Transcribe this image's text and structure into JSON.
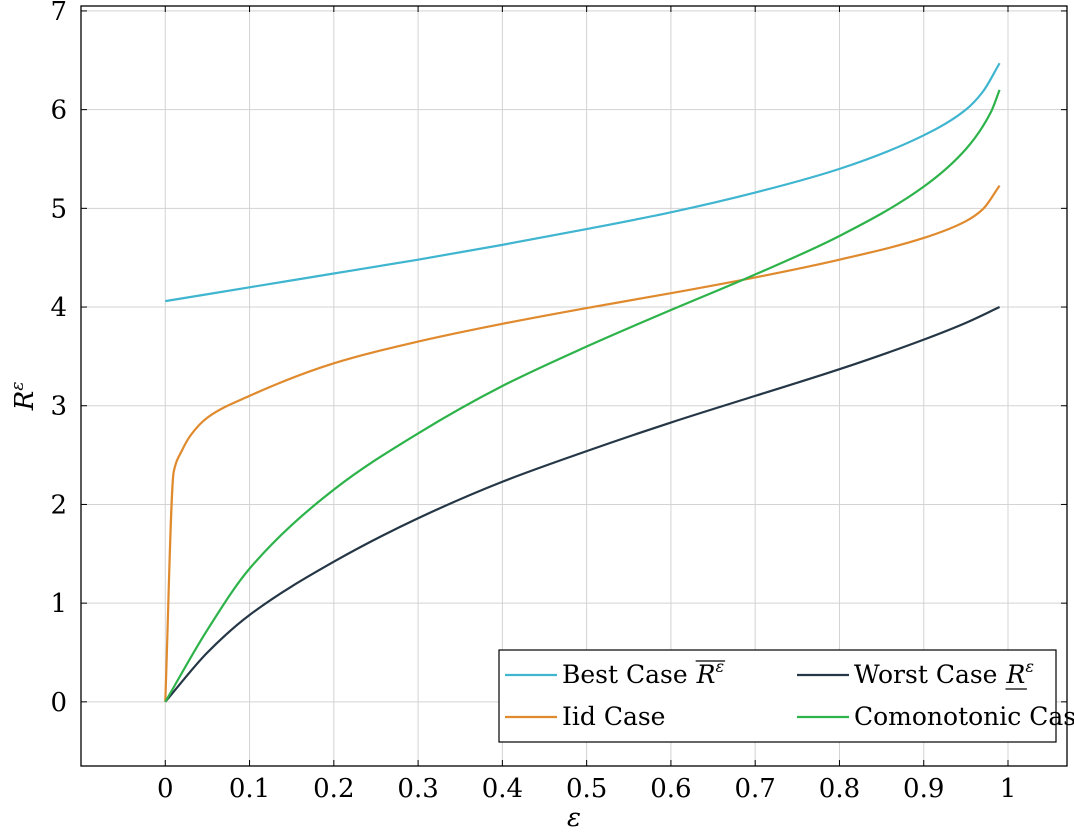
{
  "chart_data": {
    "type": "line",
    "xlabel": "ε",
    "ylabel": "R",
    "ylabel_superscript": "ε",
    "xlim": [
      -0.1,
      1.07
    ],
    "ylim": [
      -0.65,
      7.05
    ],
    "xticks": [
      "0",
      "0.1",
      "0.2",
      "0.3",
      "0.4",
      "0.5",
      "0.6",
      "0.7",
      "0.8",
      "0.9",
      "1"
    ],
    "yticks": [
      "0",
      "1",
      "2",
      "3",
      "4",
      "5",
      "6",
      "7"
    ],
    "grid": true,
    "legend_position": "bottom-right",
    "series": [
      {
        "name": "Best Case",
        "legend_math": "R",
        "legend_math_sup": "ε",
        "legend_math_style": "overline",
        "color": "#3fb5d0",
        "x": [
          0,
          0.1,
          0.2,
          0.3,
          0.4,
          0.5,
          0.6,
          0.7,
          0.8,
          0.9,
          0.95,
          0.97,
          0.99
        ],
        "y": [
          4.06,
          4.2,
          4.34,
          4.48,
          4.63,
          4.79,
          4.96,
          5.16,
          5.4,
          5.74,
          6.0,
          6.18,
          6.47
        ]
      },
      {
        "name": "Worst Case",
        "legend_math": "R",
        "legend_math_sup": "ε",
        "legend_math_style": "underline",
        "color": "#253746",
        "x": [
          0,
          0.05,
          0.1,
          0.2,
          0.3,
          0.4,
          0.5,
          0.6,
          0.7,
          0.8,
          0.9,
          0.95,
          0.99
        ],
        "y": [
          0,
          0.5,
          0.88,
          1.42,
          1.86,
          2.23,
          2.54,
          2.83,
          3.1,
          3.37,
          3.67,
          3.84,
          4.0
        ]
      },
      {
        "name": "Iid Case",
        "color": "#e08a2e",
        "x": [
          0,
          0.01,
          0.02,
          0.03,
          0.05,
          0.1,
          0.2,
          0.3,
          0.4,
          0.5,
          0.6,
          0.7,
          0.8,
          0.9,
          0.95,
          0.97,
          0.99
        ],
        "y": [
          0,
          2.33,
          2.55,
          2.7,
          2.88,
          3.1,
          3.43,
          3.65,
          3.83,
          3.99,
          4.14,
          4.3,
          4.48,
          4.7,
          4.87,
          4.99,
          5.23
        ]
      },
      {
        "name": "Comonotonic Case",
        "color": "#2db34a",
        "x": [
          0,
          0.05,
          0.1,
          0.2,
          0.3,
          0.4,
          0.5,
          0.6,
          0.7,
          0.8,
          0.9,
          0.95,
          0.98,
          0.99
        ],
        "y": [
          0,
          0.73,
          1.35,
          2.15,
          2.72,
          3.2,
          3.6,
          3.97,
          4.33,
          4.72,
          5.22,
          5.6,
          5.98,
          6.2
        ]
      }
    ]
  }
}
